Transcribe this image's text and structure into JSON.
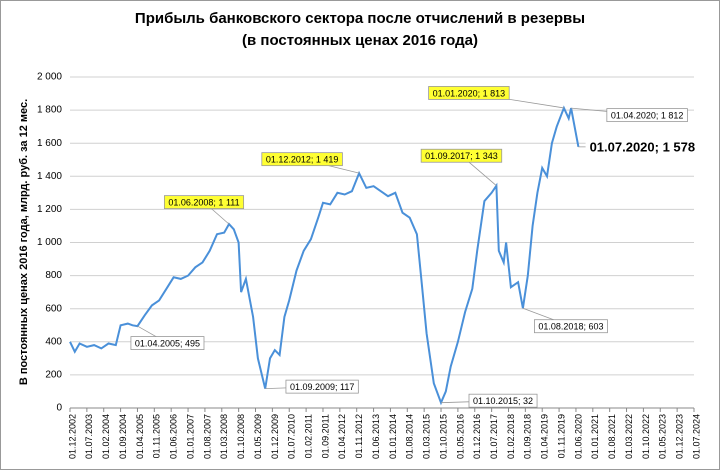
{
  "chart_data": {
    "type": "line",
    "title": "Прибыль банковского сектора после отчислений в резервы",
    "subtitle": "(в постоянных ценах 2016 года)",
    "y_label": "В постоянных ценах 2016 года, млрд. руб. за 12 мес.",
    "grid": true,
    "xlim": [
      "01.12.2002",
      "01.07.2024"
    ],
    "xticks": [
      "01.12.2002",
      "01.07.2003",
      "01.02.2004",
      "01.09.2004",
      "01.04.2005",
      "01.11.2005",
      "01.06.2006",
      "01.01.2007",
      "01.08.2007",
      "01.03.2008",
      "01.10.2008",
      "01.05.2009",
      "01.12.2009",
      "01.07.2010",
      "01.02.2011",
      "01.09.2011",
      "01.04.2012",
      "01.11.2012",
      "01.06.2013",
      "01.01.2014",
      "01.08.2014",
      "01.03.2015",
      "01.10.2015",
      "01.05.2016",
      "01.12.2016",
      "01.07.2017",
      "01.02.2018",
      "01.09.2018",
      "01.04.2019",
      "01.11.2019",
      "01.06.2020",
      "01.01.2021",
      "01.08.2021",
      "01.03.2022",
      "01.10.2022",
      "01.05.2023",
      "01.12.2023",
      "01.07.2024"
    ],
    "ylim": [
      0,
      2000
    ],
    "yticks": [
      0,
      200,
      400,
      600,
      800,
      {
        "value": 1000,
        "label": "1 000"
      },
      {
        "value": 1200,
        "label": "1 200"
      },
      {
        "value": 1400,
        "label": "1 400"
      },
      {
        "value": 1600,
        "label": "1 600"
      },
      {
        "value": 1800,
        "label": "1 800"
      },
      {
        "value": 2000,
        "label": "2 000"
      }
    ],
    "x": [
      "01.12.2002",
      "01.02.2003",
      "01.04.2003",
      "01.07.2003",
      "01.10.2003",
      "01.01.2004",
      "01.04.2004",
      "01.07.2004",
      "01.09.2004",
      "01.12.2004",
      "01.02.2005",
      "01.04.2005",
      "01.07.2005",
      "01.10.2005",
      "01.01.2006",
      "01.04.2006",
      "01.07.2006",
      "01.10.2006",
      "01.01.2007",
      "01.04.2007",
      "01.07.2007",
      "01.10.2007",
      "01.01.2008",
      "01.04.2008",
      "01.06.2008",
      "01.08.2008",
      "01.10.2008",
      "01.11.2008",
      "01.01.2009",
      "01.04.2009",
      "01.06.2009",
      "01.09.2009",
      "01.11.2009",
      "01.01.2010",
      "01.03.2010",
      "01.05.2010",
      "01.07.2010",
      "01.10.2010",
      "01.01.2011",
      "01.04.2011",
      "01.07.2011",
      "01.09.2011",
      "01.12.2011",
      "01.03.2012",
      "01.06.2012",
      "01.09.2012",
      "01.12.2012",
      "01.03.2013",
      "01.06.2013",
      "01.09.2013",
      "01.12.2013",
      "01.03.2014",
      "01.06.2014",
      "01.09.2014",
      "01.12.2014",
      "01.02.2015",
      "01.04.2015",
      "01.07.2015",
      "01.10.2015",
      "01.12.2015",
      "01.02.2016",
      "01.05.2016",
      "01.08.2016",
      "01.11.2016",
      "01.01.2017",
      "01.04.2017",
      "01.07.2017",
      "01.09.2017",
      "01.10.2017",
      "01.12.2017",
      "01.01.2018",
      "01.03.2018",
      "01.06.2018",
      "01.08.2018",
      "01.10.2018",
      "01.12.2018",
      "01.02.2019",
      "01.04.2019",
      "01.06.2019",
      "01.08.2019",
      "01.10.2019",
      "01.01.2020",
      "01.03.2020",
      "01.04.2020",
      "01.07.2020"
    ],
    "series": [
      {
        "color": "#4a90d9",
        "values": [
          400,
          340,
          390,
          370,
          380,
          360,
          390,
          380,
          500,
          510,
          500,
          495,
          560,
          620,
          650,
          720,
          790,
          780,
          800,
          850,
          880,
          950,
          1050,
          1060,
          1111,
          1080,
          1000,
          700,
          780,
          550,
          300,
          117,
          300,
          350,
          320,
          550,
          650,
          830,
          950,
          1020,
          1150,
          1240,
          1230,
          1300,
          1290,
          1310,
          1419,
          1330,
          1340,
          1310,
          1280,
          1300,
          1180,
          1150,
          1050,
          750,
          450,
          150,
          32,
          100,
          250,
          400,
          580,
          720,
          950,
          1250,
          1300,
          1343,
          950,
          880,
          1000,
          730,
          760,
          603,
          800,
          1100,
          1300,
          1450,
          1400,
          1600,
          1700,
          1813,
          1750,
          1812,
          1578
        ],
        "value_labels": [
          null,
          null,
          null,
          null,
          null,
          null,
          null,
          null,
          null,
          null,
          null,
          "01.04.2005; 495",
          null,
          null,
          null,
          null,
          null,
          null,
          null,
          null,
          null,
          null,
          null,
          null,
          "01.06.2008; 1 111",
          null,
          null,
          null,
          null,
          null,
          null,
          "01.09.2009; 117",
          null,
          null,
          null,
          null,
          null,
          null,
          null,
          null,
          null,
          null,
          null,
          null,
          null,
          null,
          "01.12.2012; 1 419",
          null,
          null,
          null,
          null,
          null,
          null,
          null,
          null,
          null,
          null,
          null,
          "01.10.2015; 32",
          null,
          null,
          null,
          null,
          null,
          null,
          null,
          null,
          "01.09.2017; 1 343",
          null,
          null,
          null,
          null,
          null,
          "01.08.2018; 603",
          null,
          null,
          null,
          null,
          null,
          null,
          null,
          "01.01.2020; 1 813",
          null,
          "01.04.2020; 1 812",
          "01.07.2020; 1 578"
        ]
      }
    ]
  }
}
